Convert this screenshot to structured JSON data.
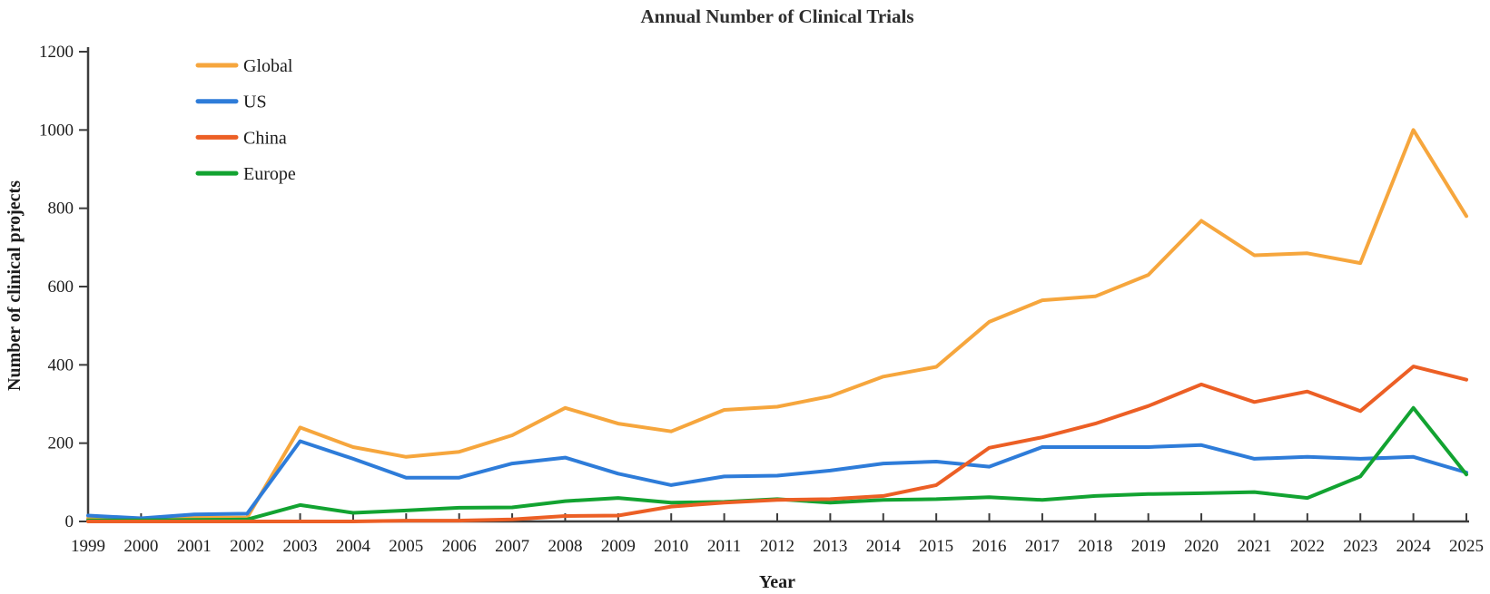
{
  "chart_data": {
    "type": "line",
    "title": "Annual Number of Clinical Trials",
    "xlabel": "Year",
    "ylabel": "Number of clinical projects",
    "x": [
      1999,
      2000,
      2001,
      2002,
      2003,
      2004,
      2005,
      2006,
      2007,
      2008,
      2009,
      2010,
      2011,
      2012,
      2013,
      2014,
      2015,
      2016,
      2017,
      2018,
      2019,
      2020,
      2021,
      2022,
      2023,
      2024,
      2025
    ],
    "ylim": [
      0,
      1200
    ],
    "yticks": [
      0,
      200,
      400,
      600,
      800,
      1000,
      1200
    ],
    "grid": false,
    "legend_position": "upper-left-inside",
    "series": [
      {
        "name": "Global",
        "color": "#F6A63D",
        "values": [
          8,
          5,
          10,
          10,
          240,
          190,
          165,
          178,
          220,
          290,
          250,
          230,
          285,
          293,
          320,
          370,
          395,
          510,
          565,
          575,
          630,
          768,
          680,
          685,
          660,
          1000,
          780
        ]
      },
      {
        "name": "US",
        "color": "#2E7CD9",
        "values": [
          15,
          8,
          18,
          20,
          205,
          160,
          112,
          112,
          148,
          163,
          122,
          93,
          115,
          117,
          130,
          148,
          153,
          140,
          190,
          190,
          190,
          195,
          160,
          165,
          160,
          165,
          125
        ]
      },
      {
        "name": "China",
        "color": "#EC5F25",
        "values": [
          0,
          0,
          0,
          0,
          0,
          0,
          2,
          2,
          5,
          14,
          15,
          38,
          48,
          55,
          57,
          65,
          93,
          188,
          215,
          250,
          295,
          350,
          305,
          332,
          282,
          396,
          362
        ]
      },
      {
        "name": "Europe",
        "color": "#12A331",
        "values": [
          3,
          3,
          4,
          5,
          42,
          22,
          28,
          35,
          36,
          52,
          60,
          48,
          50,
          57,
          48,
          55,
          57,
          62,
          55,
          65,
          70,
          72,
          75,
          60,
          115,
          290,
          120
        ]
      }
    ],
    "axis_color": "#3C3C3C"
  }
}
